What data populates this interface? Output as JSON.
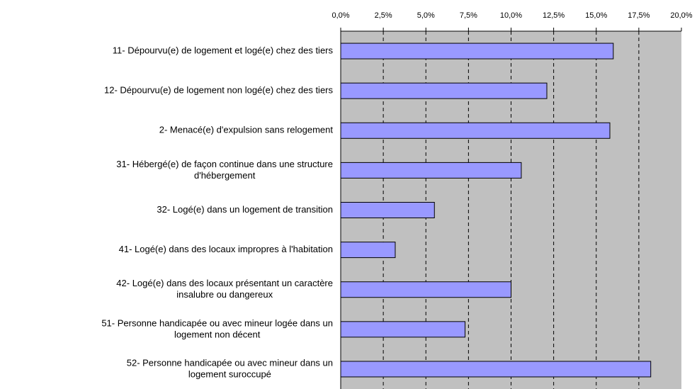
{
  "chart_data": {
    "type": "bar",
    "orientation": "horizontal",
    "categories": [
      [
        "11- Dépourvu(e) de logement et logé(e) chez des tiers"
      ],
      [
        "12- Dépourvu(e) de logement non logé(e) chez des tiers"
      ],
      [
        "2- Menacé(e) d'expulsion sans relogement"
      ],
      [
        "31- Hébergé(e) de façon continue dans une structure",
        "d'hébergement"
      ],
      [
        "32- Logé(e) dans un logement de transition"
      ],
      [
        "41- Logé(e) dans des locaux impropres à l'habitation"
      ],
      [
        "42- Logé(e) dans des locaux présentant un caractère",
        "insalubre ou dangereux"
      ],
      [
        "51- Personne handicapée ou avec mineur logée dans un",
        "logement non décent"
      ],
      [
        "52-  Personne handicapée ou avec mineur dans un",
        "logement suroccupé"
      ]
    ],
    "values": [
      16.0,
      12.1,
      15.8,
      10.6,
      5.5,
      3.2,
      10.0,
      7.3,
      18.2
    ],
    "color": "#9999ff",
    "xlim": [
      0,
      20
    ],
    "xticks": [
      {
        "value": 0,
        "label": "0,0%"
      },
      {
        "value": 2.5,
        "label": "2,5%"
      },
      {
        "value": 5,
        "label": "5,0%"
      },
      {
        "value": 7.5,
        "label": "7,5%"
      },
      {
        "value": 10,
        "label": "10,0%"
      },
      {
        "value": 12.5,
        "label": "12,5%"
      },
      {
        "value": 15,
        "label": "15,0%"
      },
      {
        "value": 17.5,
        "label": "17,5%"
      },
      {
        "value": 20,
        "label": "20,0%"
      }
    ],
    "grid": true
  }
}
